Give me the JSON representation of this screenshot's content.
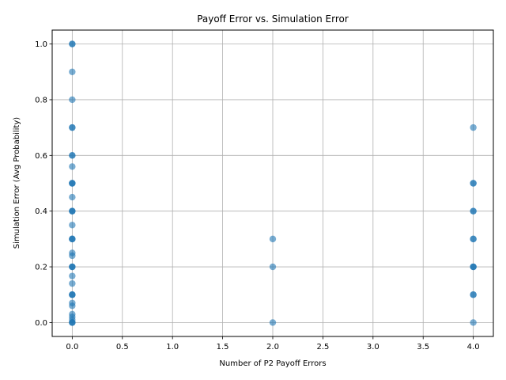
{
  "chart_data": {
    "type": "scatter",
    "title": "Payoff Error vs. Simulation Error",
    "xlabel": "Number of P2 Payoff Errors",
    "ylabel": "Simulation Error (Avg Probability)",
    "xlim": [
      -0.2,
      4.2
    ],
    "ylim": [
      -0.05,
      1.05
    ],
    "xticks": [
      "0.0",
      "0.5",
      "1.0",
      "1.5",
      "2.0",
      "2.5",
      "3.0",
      "3.5",
      "4.0"
    ],
    "yticks": [
      "0.0",
      "0.2",
      "0.4",
      "0.6",
      "0.8",
      "1.0"
    ],
    "grid": true,
    "point_color": "#1f77b4",
    "points": [
      {
        "x": 0,
        "y": 1.0
      },
      {
        "x": 0,
        "y": 1.0
      },
      {
        "x": 0,
        "y": 0.9
      },
      {
        "x": 0,
        "y": 0.8
      },
      {
        "x": 0,
        "y": 0.7
      },
      {
        "x": 0,
        "y": 0.7
      },
      {
        "x": 0,
        "y": 0.6
      },
      {
        "x": 0,
        "y": 0.6
      },
      {
        "x": 0,
        "y": 0.56
      },
      {
        "x": 0,
        "y": 0.5
      },
      {
        "x": 0,
        "y": 0.5
      },
      {
        "x": 0,
        "y": 0.5
      },
      {
        "x": 0,
        "y": 0.45
      },
      {
        "x": 0,
        "y": 0.4
      },
      {
        "x": 0,
        "y": 0.4
      },
      {
        "x": 0,
        "y": 0.4
      },
      {
        "x": 0,
        "y": 0.35
      },
      {
        "x": 0,
        "y": 0.3
      },
      {
        "x": 0,
        "y": 0.3
      },
      {
        "x": 0,
        "y": 0.3
      },
      {
        "x": 0,
        "y": 0.25
      },
      {
        "x": 0,
        "y": 0.24
      },
      {
        "x": 0,
        "y": 0.2
      },
      {
        "x": 0,
        "y": 0.2
      },
      {
        "x": 0,
        "y": 0.2
      },
      {
        "x": 0,
        "y": 0.167
      },
      {
        "x": 0,
        "y": 0.14
      },
      {
        "x": 0,
        "y": 0.1
      },
      {
        "x": 0,
        "y": 0.1
      },
      {
        "x": 0,
        "y": 0.1
      },
      {
        "x": 0,
        "y": 0.07
      },
      {
        "x": 0,
        "y": 0.06
      },
      {
        "x": 0,
        "y": 0.03
      },
      {
        "x": 0,
        "y": 0.02
      },
      {
        "x": 0,
        "y": 0.01
      },
      {
        "x": 0,
        "y": 0.0
      },
      {
        "x": 0,
        "y": 0.0
      },
      {
        "x": 0,
        "y": 0.0
      },
      {
        "x": 2,
        "y": 0.3
      },
      {
        "x": 2,
        "y": 0.2
      },
      {
        "x": 2,
        "y": 0.0
      },
      {
        "x": 4,
        "y": 0.7
      },
      {
        "x": 4,
        "y": 0.5
      },
      {
        "x": 4,
        "y": 0.5
      },
      {
        "x": 4,
        "y": 0.4
      },
      {
        "x": 4,
        "y": 0.4
      },
      {
        "x": 4,
        "y": 0.3
      },
      {
        "x": 4,
        "y": 0.3
      },
      {
        "x": 4,
        "y": 0.2
      },
      {
        "x": 4,
        "y": 0.2
      },
      {
        "x": 4,
        "y": 0.2
      },
      {
        "x": 4,
        "y": 0.1
      },
      {
        "x": 4,
        "y": 0.1
      },
      {
        "x": 4,
        "y": 0.0
      }
    ]
  }
}
